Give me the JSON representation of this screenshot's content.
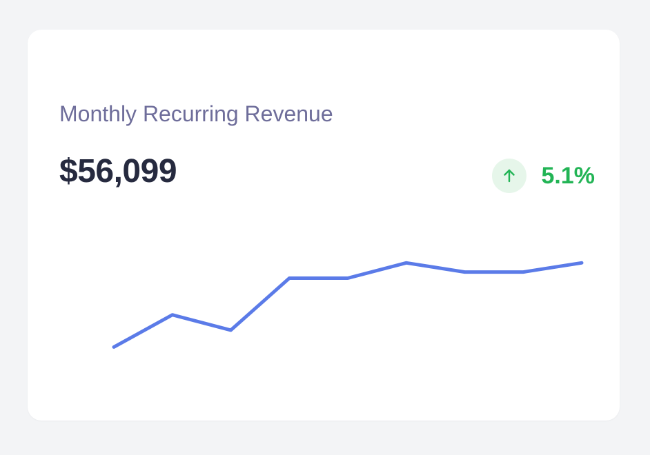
{
  "card": {
    "title": "Monthly Recurring Revenue",
    "value": "$56,099",
    "trend": {
      "direction": "up",
      "icon": "arrow-up-icon",
      "value": "5.1%"
    }
  },
  "colors": {
    "background": "#f3f4f6",
    "card": "#ffffff",
    "title": "#6e6d9a",
    "value": "#262a3f",
    "positive": "#22b455",
    "positive_bg": "#e6f6ea",
    "line": "#5b7be8"
  },
  "chart_data": {
    "type": "line",
    "title": "",
    "xlabel": "",
    "ylabel": "",
    "grid": false,
    "legend": "none",
    "x": [
      1,
      2,
      3,
      4,
      5,
      6,
      7,
      8,
      9
    ],
    "ylim": [
      0,
      10
    ],
    "series": [
      {
        "values": [
          1.2,
          3.3,
          2.3,
          5.7,
          5.7,
          6.7,
          6.1,
          6.1,
          6.7
        ]
      }
    ]
  }
}
